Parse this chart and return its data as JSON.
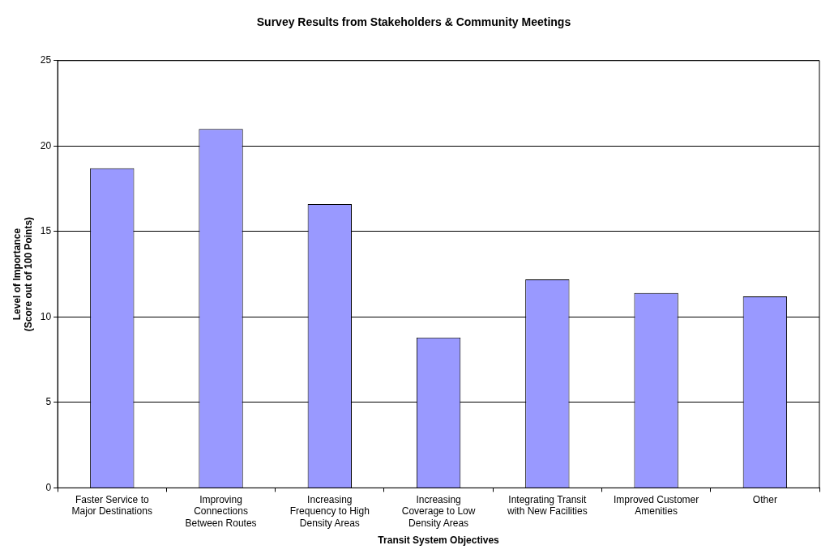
{
  "chart_data": {
    "type": "bar",
    "title": "Survey Results from Stakeholders & Community Meetings",
    "xlabel": "Transit System Objectives",
    "ylabel": "Level of Importance (Score out of 100 Points)",
    "categories": [
      "Faster Service to Major Destinations",
      "Improving Connections Between Routes",
      "Increasing Frequency to High Density Areas",
      "Increasing Coverage to Low Density Areas",
      "Integrating Transit with New Facilities",
      "Improved Customer Amenities",
      "Other"
    ],
    "values": [
      18.7,
      21.0,
      16.6,
      8.8,
      12.2,
      11.4,
      11.2
    ],
    "color": "#9999ff",
    "ylim": [
      0,
      25
    ],
    "yticks": [
      0,
      5,
      10,
      15,
      20,
      25
    ],
    "grid": "y",
    "legend": false
  }
}
